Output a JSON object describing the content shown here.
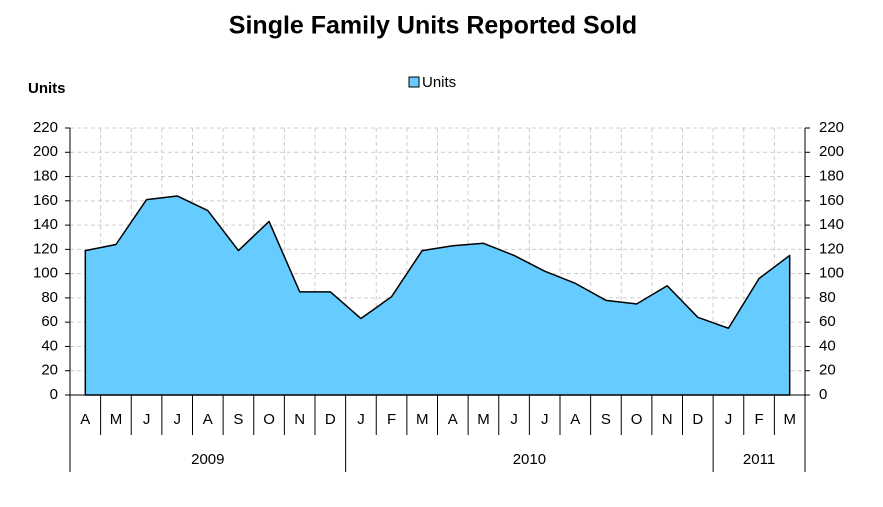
{
  "chart_data": {
    "type": "area",
    "title": "Single  Family Units Reported Sold",
    "y_label": "Units",
    "category_groups": [
      {
        "label": "2009",
        "categories": [
          "A",
          "M",
          "J",
          "J",
          "A",
          "S",
          "O",
          "N",
          "D"
        ]
      },
      {
        "label": "2010",
        "categories": [
          "J",
          "F",
          "M",
          "A",
          "M",
          "J",
          "J",
          "A",
          "S",
          "O",
          "N",
          "D"
        ]
      },
      {
        "label": "2011",
        "categories": [
          "J",
          "F",
          "M"
        ]
      }
    ],
    "series": [
      {
        "name": "Units",
        "color": "#66ccff",
        "values": [
          119,
          124,
          161,
          164,
          152,
          119,
          143,
          85,
          85,
          63,
          81,
          119,
          123,
          125,
          115,
          102,
          92,
          78,
          75,
          90,
          64,
          55,
          96,
          115
        ]
      }
    ],
    "ylim": [
      0,
      220
    ],
    "yticks": [
      0,
      20,
      40,
      60,
      80,
      100,
      120,
      140,
      160,
      180,
      200,
      220
    ],
    "grid": true,
    "legend": "top"
  }
}
